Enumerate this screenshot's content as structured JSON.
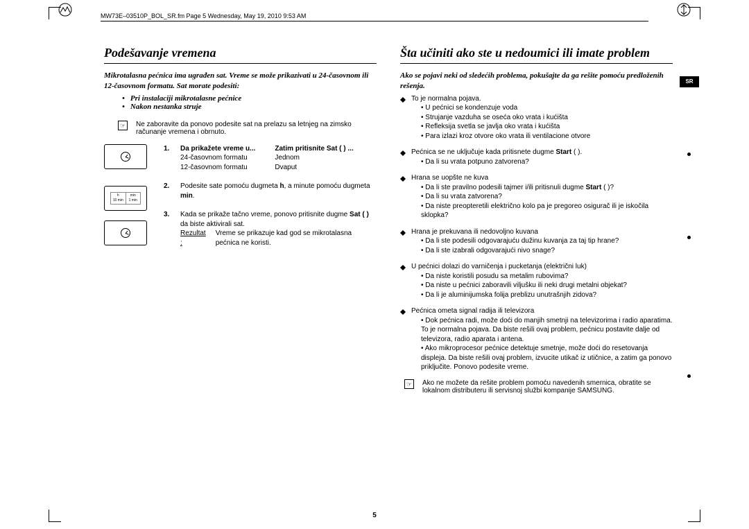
{
  "header": "MW73E–03510P_BOL_SR.fm  Page 5  Wednesday, May 19, 2010  9:53 AM",
  "sideTab": "SR",
  "pageNumber": "5",
  "left": {
    "title": "Podešavanje vremena",
    "intro": "Mikrotalasna pećnica ima ugrađen sat. Vreme se može prikazivati u 24-časovnom ili 12-časovnom formatu. Sat morate podesiti:",
    "when1": "Pri instalaciji mikrotalasne pećnice",
    "when2": "Nakon nestanka struje",
    "note": "Ne zaboravite da ponovo podesite sat na prelazu sa letnjeg na zimsko računanje vremena i obrnuto.",
    "noteIcon": "☞",
    "step1": {
      "c1h": "Da prikažete vreme u...",
      "c1a": "24-časovnom formatu",
      "c1b": "12-časovnom formatu",
      "c2h": "Zatim pritisnite Sat (   ) ...",
      "c2a": "Jednom",
      "c2b": "Dvaput"
    },
    "step2": {
      "textA": "Podesite sate pomoću dugmeta ",
      "hB": "h",
      "textB": ", a minute pomoću dugmeta ",
      "minB": "min",
      "textC": "."
    },
    "step3": {
      "line1a": "Kada se prikaže tačno vreme, ponovo pritisnite dugme ",
      "line1b": "Sat (   )",
      "line1c": " da biste aktivirali sat.",
      "resLbl": "Rezultat :",
      "resTxt": "Vreme se prikazuje kad god se mikrotalasna pećnica ne koristi."
    },
    "hmin": {
      "hTop": "h",
      "hBot": "10 min",
      "mTop": "min",
      "mBot": "1 min"
    }
  },
  "right": {
    "title": "Šta učiniti ako ste u nedoumici ili imate problem",
    "intro": "Ako se pojavi neki od sledećih problema, pokušajte da ga rešite pomoću predloženih rešenja.",
    "issues": [
      {
        "head": "To je normalna pojava.",
        "items": [
          "U pećnici se kondenzuje voda",
          "Strujanje vazduha se oseća oko vrata i kućišta",
          "Refleksija svetla se javlja oko vrata i kućišta",
          "Para izlazi kroz otvore oko vrata ili ventilacione otvore"
        ]
      },
      {
        "headA": "Pećnica se ne uključuje kada pritisnete dugme ",
        "headB": "Start",
        "headC": " (   ).",
        "items": [
          "Da li su vrata potpuno zatvorena?"
        ]
      },
      {
        "head": "Hrana se uopšte ne kuva",
        "itemsA": "Da li ste pravilno podesili tajmer i/ili pritisnuli dugme ",
        "itemsAB": "Start",
        "itemsAC": " (   )?",
        "items": [
          "Da li su vrata zatvorena?",
          "Da niste preopteretili električno kolo pa je pregoreo osigurač ili je iskočila sklopka?"
        ]
      },
      {
        "head": "Hrana je prekuvana ili nedovoljno kuvana",
        "items": [
          "Da li ste podesili odgovarajuću dužinu kuvanja za taj tip hrane?",
          "Da li ste izabrali odgovarajući nivo snage?"
        ]
      },
      {
        "head": "U pećnici dolazi do varničenja i pucketanja (električni luk)",
        "items": [
          "Da niste koristili posudu sa metalim rubovima?",
          "Da niste u pećnici zaboravili viljušku ili neki drugi metalni objekat?",
          "Da li je aluminijumska folija preblizu unutrašnjih zidova?"
        ]
      },
      {
        "head": "Pećnica ometa signal radija ili televizora",
        "items": [
          "Dok pećnica radi, može doći do manjih smetnji na televizorima i radio aparatima. To je normalna pojava. Da biste rešili ovaj problem, pećnicu postavite dalje od televizora, radio aparata i antena.",
          "Ako mikroprocesor pećnice detektuje smetnje, može doći do resetovanja displeja. Da biste rešili ovaj problem, izvucite utikač iz utičnice, a zatim ga ponovo priključite. Ponovo podesite vreme."
        ]
      }
    ],
    "finalNote": "Ako ne možete da rešite problem pomoću navedenih smernica, obratite se lokalnom distributeru ili servisnoj službi kompanije SAMSUNG.",
    "noteIcon": "☞"
  }
}
